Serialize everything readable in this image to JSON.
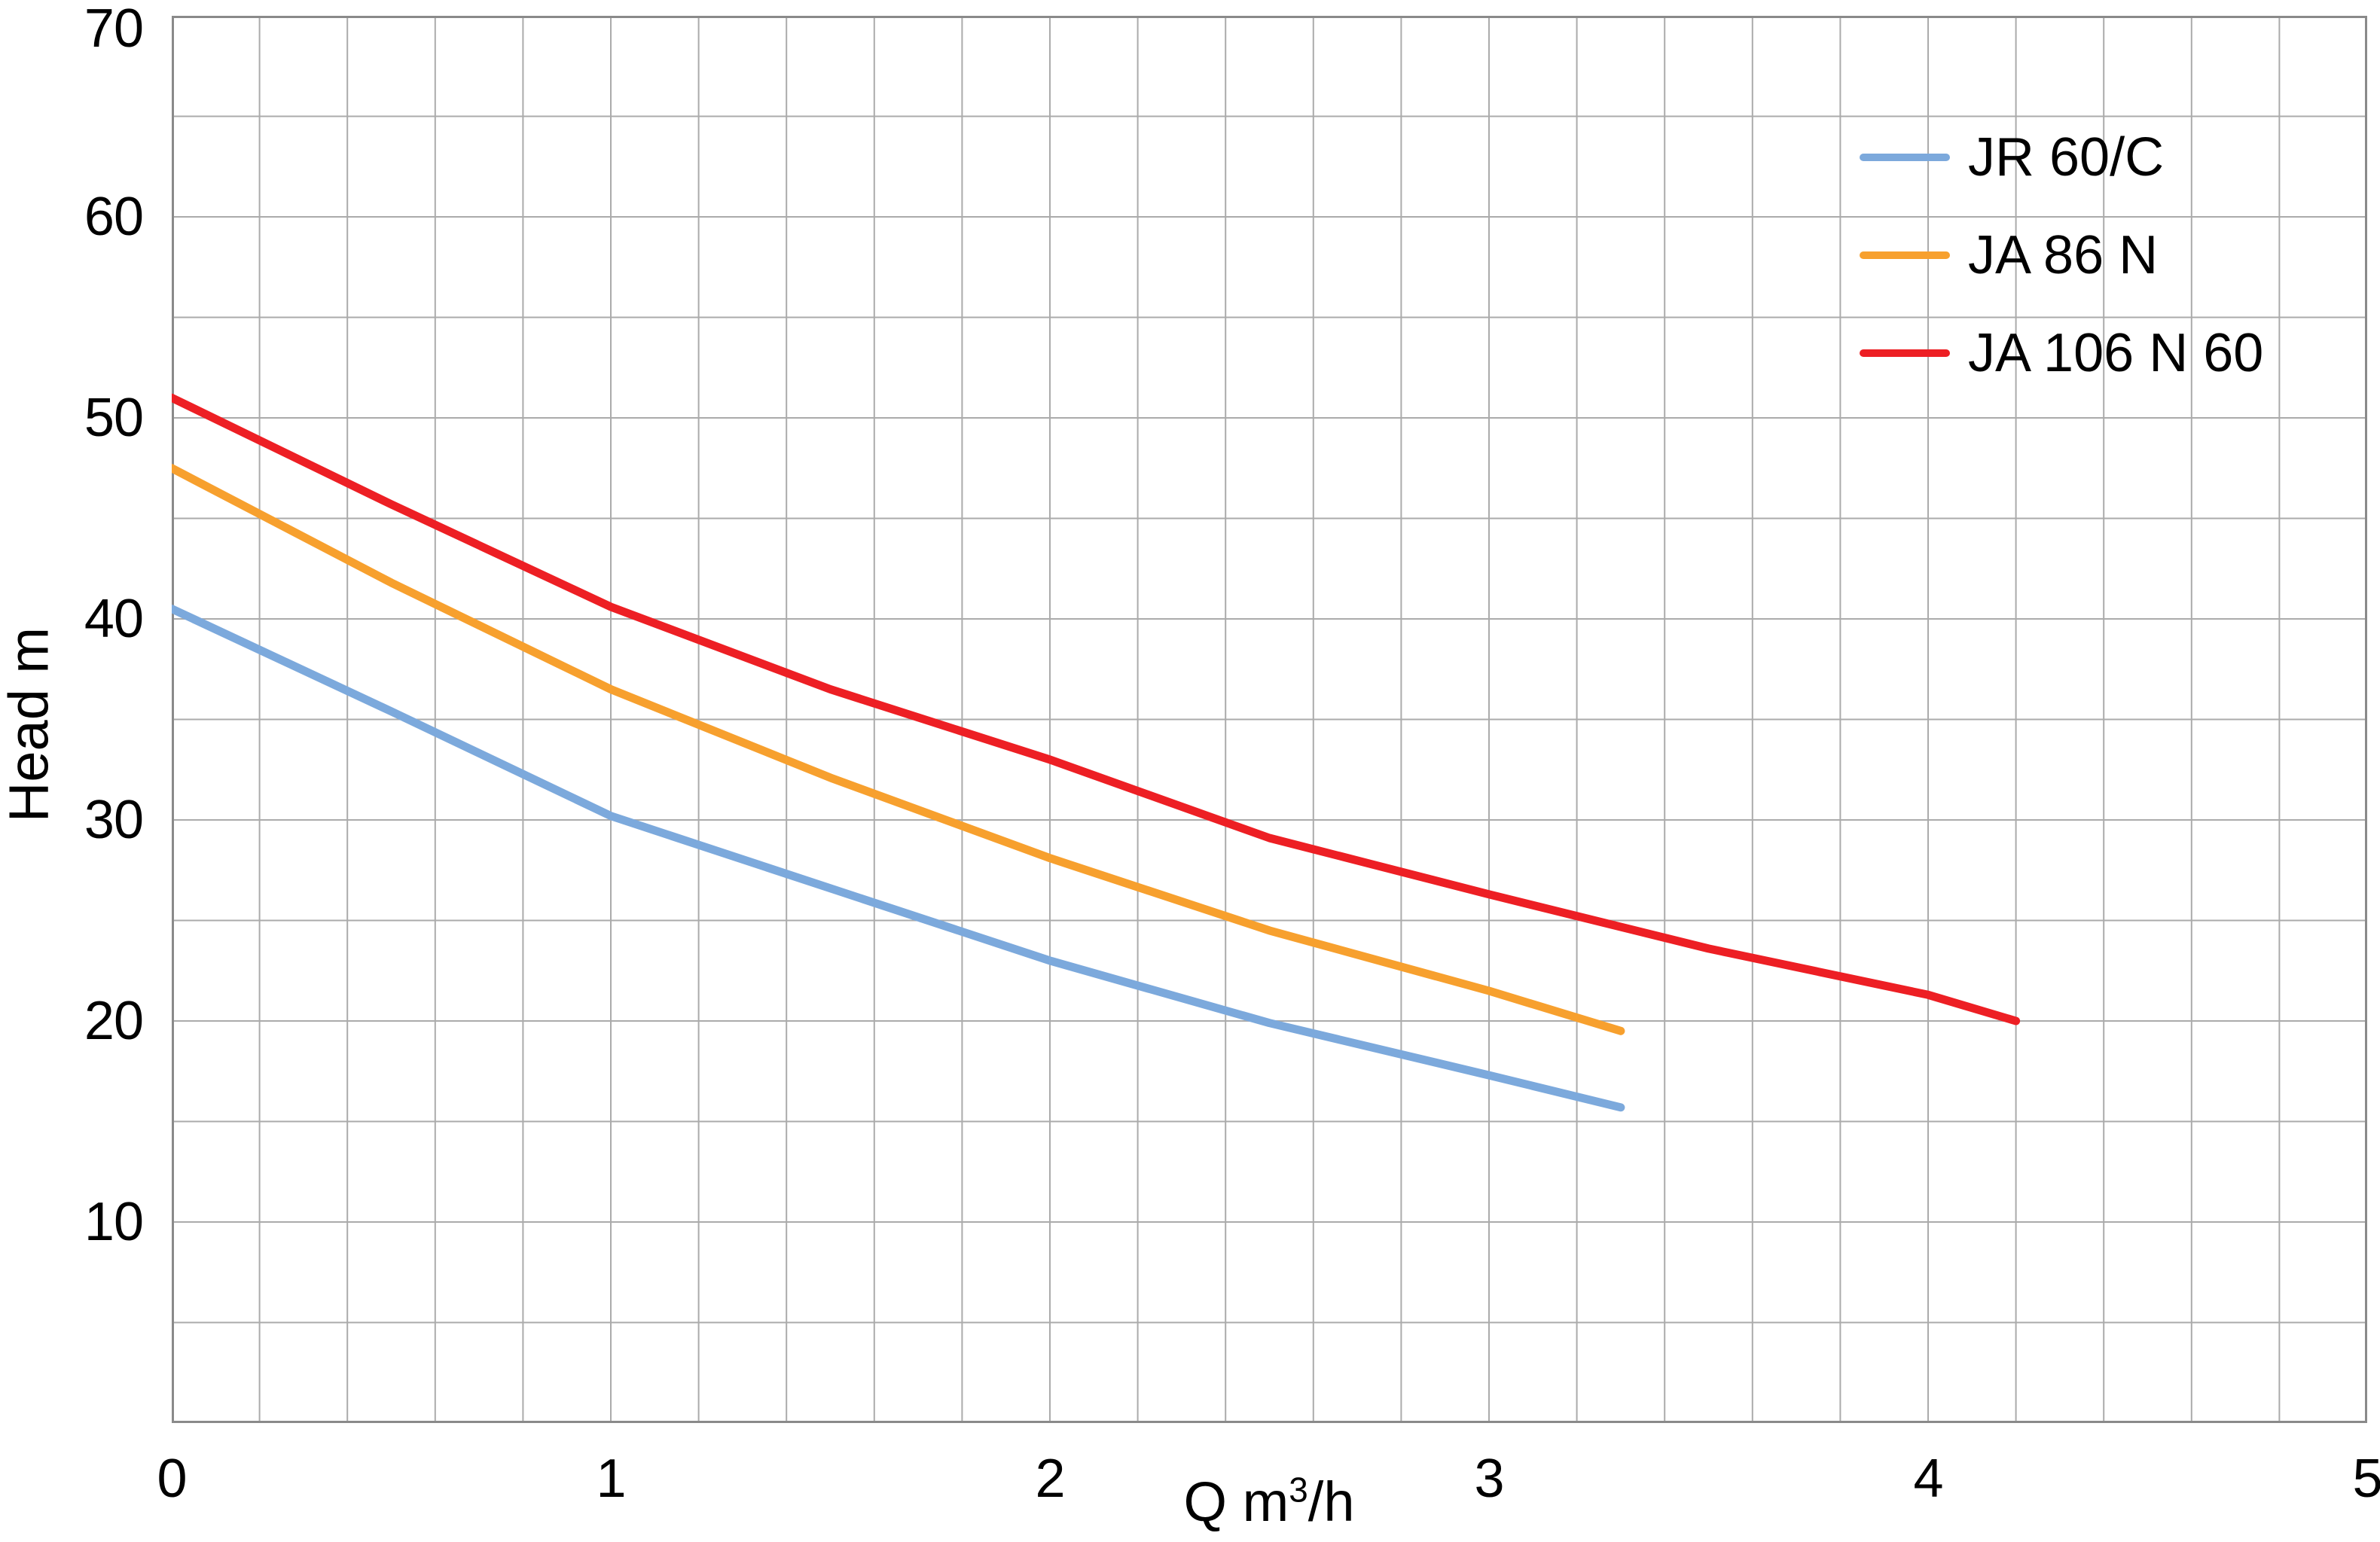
{
  "chart_data": {
    "type": "line",
    "title": "",
    "xlabel": "Q m³/h",
    "xlabel_parts": {
      "prefix": "Q m",
      "sup": "3",
      "suffix": "/h"
    },
    "ylabel": "Head m",
    "xlim": [
      0,
      5
    ],
    "ylim": [
      0,
      70
    ],
    "x_tick_labels": [
      "0",
      "1",
      "2",
      "3",
      "4",
      "5"
    ],
    "x_tick_values": [
      0,
      1,
      2,
      3,
      4,
      5
    ],
    "y_tick_labels": [
      "70",
      "60",
      "50",
      "40",
      "30",
      "20",
      "10"
    ],
    "y_tick_values": [
      70,
      60,
      50,
      40,
      30,
      20,
      10
    ],
    "x_grid_step": 0.2,
    "y_grid_step": 5,
    "grid": true,
    "legend_position": "top-right-inside",
    "series": [
      {
        "name": "JR 60/C",
        "color": "#7CA9DC",
        "points": [
          [
            0,
            40.5
          ],
          [
            0.5,
            35.4
          ],
          [
            1,
            30.2
          ],
          [
            1.5,
            26.6
          ],
          [
            2,
            23.0
          ],
          [
            2.5,
            19.9
          ],
          [
            3,
            17.3
          ],
          [
            3.3,
            15.7
          ]
        ]
      },
      {
        "name": "JA 86 N",
        "color": "#F7A02E",
        "points": [
          [
            0,
            47.5
          ],
          [
            0.5,
            41.8
          ],
          [
            1,
            36.5
          ],
          [
            1.5,
            32.1
          ],
          [
            2,
            28.1
          ],
          [
            2.5,
            24.5
          ],
          [
            3,
            21.5
          ],
          [
            3.3,
            19.5
          ]
        ]
      },
      {
        "name": "JA 106 N 60",
        "color": "#ED1F24",
        "points": [
          [
            0,
            51.0
          ],
          [
            0.5,
            45.7
          ],
          [
            1,
            40.6
          ],
          [
            1.5,
            36.5
          ],
          [
            2,
            33.0
          ],
          [
            2.5,
            29.1
          ],
          [
            3,
            26.3
          ],
          [
            3.5,
            23.6
          ],
          [
            4,
            21.3
          ],
          [
            4.2,
            20.0
          ]
        ]
      }
    ],
    "colors": {
      "grid": "#ABABAB",
      "border": "#8A8A8A",
      "text": "#000000",
      "background": "#FFFFFF"
    }
  }
}
